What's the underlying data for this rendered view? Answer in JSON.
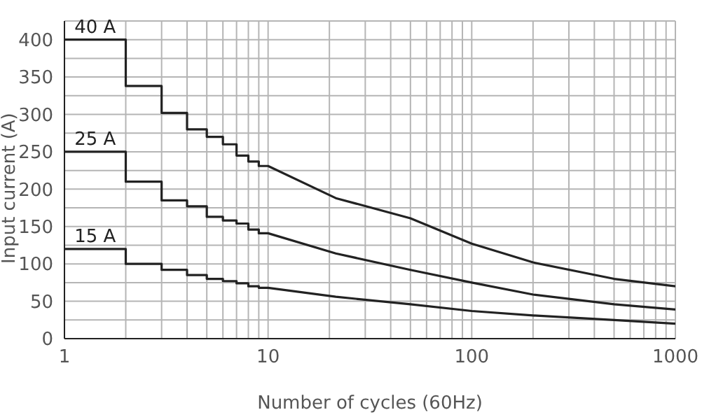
{
  "chart_data": {
    "type": "line",
    "xlabel": "Number of cycles (60Hz)",
    "ylabel": "Input current (A)",
    "log": "x",
    "xlim": [
      1,
      1000
    ],
    "ylim": [
      0,
      425
    ],
    "xticks": [
      1,
      {
        "value": 2,
        "label": null
      },
      {
        "value": 3,
        "label": null
      },
      {
        "value": 4,
        "label": null
      },
      {
        "value": 5,
        "label": null
      },
      {
        "value": 6,
        "label": null
      },
      {
        "value": 7,
        "label": null
      },
      {
        "value": 8,
        "label": null
      },
      {
        "value": 9,
        "label": null
      },
      10,
      {
        "value": 20,
        "label": null
      },
      {
        "value": 30,
        "label": null
      },
      {
        "value": 40,
        "label": null
      },
      {
        "value": 50,
        "label": null
      },
      {
        "value": 60,
        "label": null
      },
      {
        "value": 70,
        "label": null
      },
      {
        "value": 80,
        "label": null
      },
      {
        "value": 90,
        "label": null
      },
      100,
      {
        "value": 200,
        "label": null
      },
      {
        "value": 300,
        "label": null
      },
      {
        "value": 400,
        "label": null
      },
      {
        "value": 500,
        "label": null
      },
      {
        "value": 600,
        "label": null
      },
      {
        "value": 700,
        "label": null
      },
      {
        "value": 800,
        "label": null
      },
      {
        "value": 900,
        "label": null
      },
      1000
    ],
    "yticks": [
      0,
      {
        "value": 25,
        "label": null
      },
      50,
      {
        "value": 75,
        "label": null
      },
      100,
      {
        "value": 125,
        "label": null
      },
      150,
      {
        "value": 175,
        "label": null
      },
      200,
      {
        "value": 225,
        "label": null
      },
      250,
      {
        "value": 275,
        "label": null
      },
      300,
      {
        "value": 325,
        "label": null
      },
      350,
      {
        "value": 375,
        "label": null
      },
      400,
      {
        "value": 425,
        "label": null
      }
    ],
    "grid": true,
    "marker": "none",
    "line_style": "solid",
    "series": [
      {
        "name": "40 A",
        "color": "#222222",
        "x": [
          1,
          2,
          2,
          3,
          3,
          4,
          4,
          5,
          5,
          6,
          6,
          7,
          7,
          8,
          8,
          9,
          9,
          10,
          21.5,
          50,
          100,
          200,
          500,
          1000
        ],
        "values": [
          400,
          400,
          338,
          338,
          302,
          302,
          280,
          280,
          270,
          270,
          260,
          260,
          245,
          245,
          237,
          237,
          231,
          231,
          188,
          161,
          127,
          102,
          80,
          70
        ]
      },
      {
        "name": "25 A",
        "color": "#222222",
        "x": [
          1,
          2,
          2,
          3,
          3,
          4,
          4,
          5,
          5,
          6,
          6,
          7,
          7,
          8,
          8,
          9,
          9,
          10,
          21.5,
          50,
          100,
          200,
          500,
          1000
        ],
        "values": [
          250,
          250,
          210,
          210,
          185,
          185,
          177,
          177,
          163,
          163,
          158,
          158,
          154,
          154,
          146,
          146,
          141,
          141,
          114,
          92,
          75,
          59,
          46,
          39
        ]
      },
      {
        "name": "15 A",
        "color": "#222222",
        "x": [
          1,
          2,
          2,
          3,
          3,
          4,
          4,
          5,
          5,
          6,
          6,
          7,
          7,
          8,
          8,
          9,
          9,
          10,
          21.5,
          50,
          100,
          200,
          500,
          1000
        ],
        "values": [
          120,
          120,
          100,
          100,
          92,
          92,
          85,
          85,
          80,
          80,
          77,
          77,
          74,
          74,
          70,
          70,
          68,
          68,
          56,
          46,
          37,
          31,
          25,
          20
        ]
      }
    ]
  }
}
